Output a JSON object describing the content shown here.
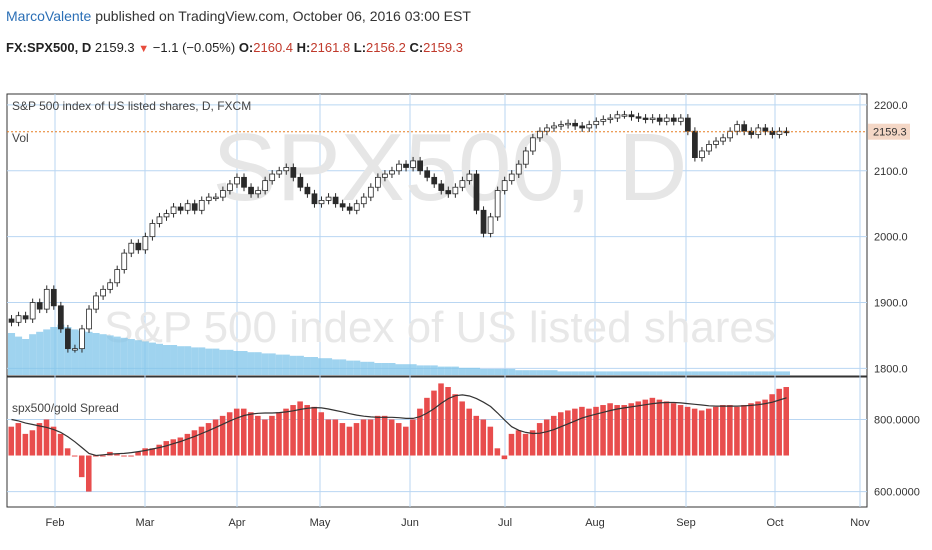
{
  "header": {
    "author": "MarcoValente",
    "published": "published on TradingView.com, October 06, 2016 03:00 EST",
    "symbol": "FX:SPX500, D",
    "last": "2159.3",
    "change": "−1.1 (−0.05%)",
    "o_label": "O:",
    "o": "2160.4",
    "h_label": "H:",
    "h": "2161.8",
    "l_label": "L:",
    "l": "2156.2",
    "c_label": "C:",
    "c": "2159.3"
  },
  "main_pane": {
    "title": "S&P 500 index of US listed shares, D, FXCM",
    "vol_label": "Vol",
    "watermark_big": "SPX500, D",
    "watermark_small": "S&P 500 index of US listed shares",
    "price_tag": "2159.3"
  },
  "lower_pane": {
    "title": "spx500/gold Spread"
  },
  "colors": {
    "up_candle": "#2a2a2a",
    "down_candle": "#2a2a2a",
    "volume": "#7fc4ea",
    "spread_bar": "#e84d4d",
    "spread_line": "#333333",
    "price_tag": "#f4d7c6",
    "price_line": "#e67e22",
    "grid": "#b9d6f2"
  },
  "chart_data": [
    {
      "type": "candlestick",
      "price_axis": {
        "ticks": [
          "2200.0",
          "2100.0",
          "2000.0",
          "1900.0",
          "1800.0"
        ],
        "range": [
          1790,
          2215
        ]
      },
      "x_ticks": [
        "Feb",
        "Mar",
        "Apr",
        "May",
        "Jun",
        "Jul",
        "Aug",
        "Sep",
        "Oct",
        "Nov"
      ],
      "close_series": [
        1870,
        1880,
        1875,
        1900,
        1890,
        1920,
        1895,
        1860,
        1830,
        1830,
        1860,
        1890,
        1910,
        1920,
        1930,
        1950,
        1975,
        1990,
        1980,
        2000,
        2020,
        2030,
        2035,
        2045,
        2040,
        2050,
        2040,
        2055,
        2060,
        2060,
        2070,
        2080,
        2090,
        2075,
        2065,
        2070,
        2085,
        2095,
        2100,
        2105,
        2090,
        2075,
        2065,
        2050,
        2055,
        2060,
        2050,
        2045,
        2040,
        2050,
        2060,
        2075,
        2090,
        2095,
        2100,
        2110,
        2105,
        2115,
        2100,
        2090,
        2080,
        2070,
        2065,
        2075,
        2085,
        2095,
        2040,
        2005,
        2030,
        2070,
        2085,
        2095,
        2110,
        2130,
        2150,
        2160,
        2165,
        2168,
        2170,
        2172,
        2168,
        2165,
        2170,
        2175,
        2178,
        2180,
        2185,
        2185,
        2182,
        2180,
        2178,
        2180,
        2175,
        2180,
        2175,
        2180,
        2160,
        2120,
        2130,
        2140,
        2145,
        2150,
        2160,
        2170,
        2160,
        2155,
        2165,
        2160,
        2155,
        2160,
        2159
      ]
    },
    {
      "type": "bar+line",
      "title": "spx500/gold Spread",
      "axis": {
        "ticks": [
          "800.0000",
          "600.0000"
        ],
        "range": [
          560,
          915
        ]
      },
      "bars": [
        780,
        790,
        760,
        770,
        790,
        800,
        780,
        760,
        720,
        700,
        640,
        600,
        700,
        700,
        710,
        705,
        700,
        700,
        710,
        720,
        720,
        730,
        740,
        745,
        750,
        760,
        770,
        780,
        790,
        800,
        810,
        820,
        830,
        830,
        820,
        810,
        800,
        810,
        820,
        830,
        840,
        850,
        840,
        835,
        820,
        800,
        800,
        790,
        780,
        790,
        800,
        800,
        810,
        810,
        800,
        790,
        780,
        800,
        830,
        860,
        880,
        900,
        890,
        870,
        850,
        830,
        810,
        800,
        780,
        720,
        690,
        760,
        770,
        760,
        770,
        790,
        800,
        810,
        820,
        825,
        830,
        835,
        830,
        835,
        840,
        845,
        840,
        840,
        845,
        850,
        855,
        860,
        855,
        850,
        845,
        840,
        835,
        830,
        825,
        830,
        835,
        840,
        840,
        835,
        840,
        845,
        850,
        855,
        870,
        885,
        890
      ],
      "line": [
        800,
        796,
        790,
        786,
        782,
        778,
        772,
        764,
        752,
        738,
        722,
        706,
        700,
        702,
        704,
        705,
        706,
        708,
        711,
        714,
        718,
        722,
        727,
        733,
        739,
        746,
        753,
        761,
        769,
        778,
        787,
        796,
        804,
        811,
        815,
        817,
        818,
        818,
        819,
        821,
        824,
        828,
        831,
        833,
        832,
        829,
        825,
        821,
        816,
        812,
        809,
        807,
        806,
        806,
        806,
        805,
        803,
        803,
        808,
        818,
        830,
        845,
        858,
        866,
        868,
        865,
        858,
        848,
        836,
        818,
        798,
        780,
        770,
        764,
        761,
        762,
        766,
        772,
        780,
        788,
        796,
        804,
        810,
        815,
        820,
        825,
        829,
        832,
        835,
        838,
        841,
        844,
        846,
        847,
        847,
        846,
        844,
        842,
        840,
        838,
        837,
        837,
        837,
        837,
        838,
        839,
        841,
        844,
        848,
        854,
        860
      ]
    }
  ]
}
